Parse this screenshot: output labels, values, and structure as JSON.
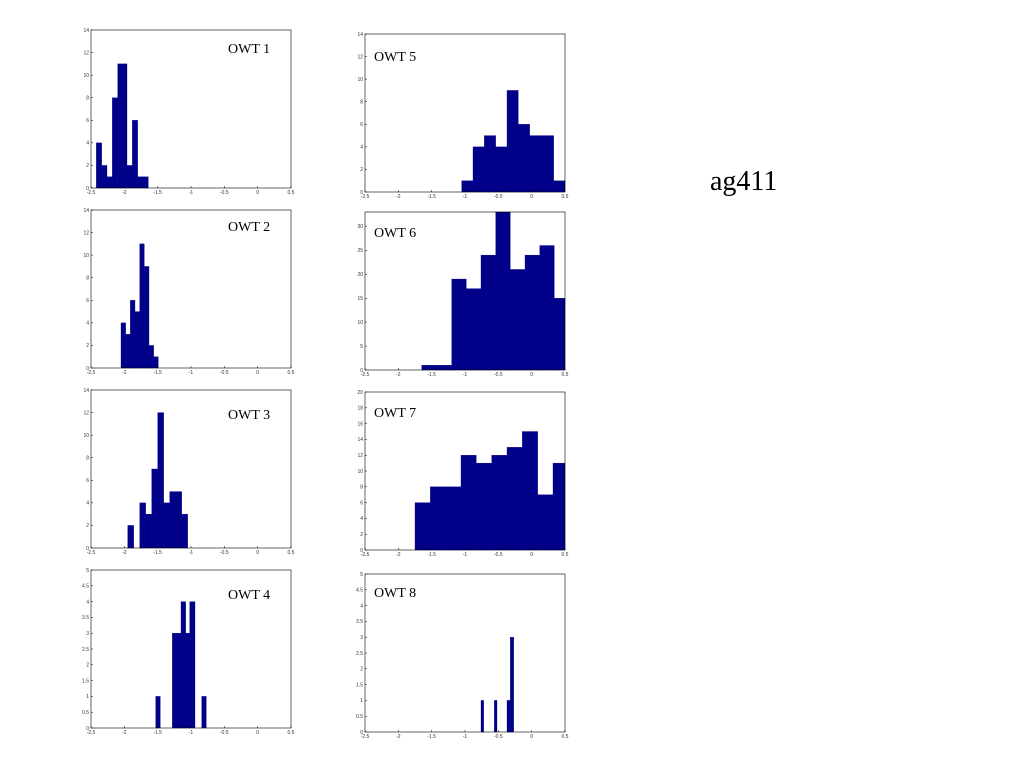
{
  "page": {
    "title": "ag411"
  },
  "colors": {
    "bar": "#000088",
    "axis": "#000000"
  },
  "chart_data": [
    {
      "type": "bar",
      "title": "OWT 1",
      "x_ticks": [
        "-2.5",
        "-2",
        "-1.5",
        "-1",
        "-0.5",
        "0",
        "0.5"
      ],
      "y_ticks": [
        "0",
        "2",
        "4",
        "6",
        "8",
        "10",
        "12",
        "14"
      ],
      "xlim": [
        -2.5,
        0.5
      ],
      "ylim": [
        0,
        14
      ],
      "bins": [
        {
          "x0": -2.42,
          "x1": -2.34,
          "v": 4
        },
        {
          "x0": -2.34,
          "x1": -2.26,
          "v": 2
        },
        {
          "x0": -2.26,
          "x1": -2.18,
          "v": 1
        },
        {
          "x0": -2.18,
          "x1": -2.1,
          "v": 8
        },
        {
          "x0": -2.1,
          "x1": -1.96,
          "v": 11
        },
        {
          "x0": -1.96,
          "x1": -1.88,
          "v": 2
        },
        {
          "x0": -1.88,
          "x1": -1.8,
          "v": 6
        },
        {
          "x0": -1.8,
          "x1": -1.64,
          "v": 1
        }
      ]
    },
    {
      "type": "bar",
      "title": "OWT 2",
      "x_ticks": [
        "-2.5",
        "-2",
        "-1.5",
        "-1",
        "-0.5",
        "0",
        "0.5"
      ],
      "y_ticks": [
        "0",
        "2",
        "4",
        "6",
        "8",
        "10",
        "12",
        "14"
      ],
      "xlim": [
        -2.5,
        0.5
      ],
      "ylim": [
        0,
        14
      ],
      "bins": [
        {
          "x0": -2.05,
          "x1": -1.98,
          "v": 4
        },
        {
          "x0": -1.98,
          "x1": -1.91,
          "v": 3
        },
        {
          "x0": -1.91,
          "x1": -1.84,
          "v": 6
        },
        {
          "x0": -1.84,
          "x1": -1.77,
          "v": 5
        },
        {
          "x0": -1.77,
          "x1": -1.7,
          "v": 11
        },
        {
          "x0": -1.7,
          "x1": -1.63,
          "v": 9
        },
        {
          "x0": -1.63,
          "x1": -1.56,
          "v": 2
        },
        {
          "x0": -1.56,
          "x1": -1.49,
          "v": 1
        }
      ]
    },
    {
      "type": "bar",
      "title": "OWT 3",
      "x_ticks": [
        "-2.5",
        "-2",
        "-1.5",
        "-1",
        "-0.5",
        "0",
        "0.5"
      ],
      "y_ticks": [
        "0",
        "2",
        "4",
        "6",
        "8",
        "10",
        "12",
        "14"
      ],
      "xlim": [
        -2.5,
        0.5
      ],
      "ylim": [
        0,
        14
      ],
      "bins": [
        {
          "x0": -1.95,
          "x1": -1.86,
          "v": 2
        },
        {
          "x0": -1.77,
          "x1": -1.68,
          "v": 4
        },
        {
          "x0": -1.68,
          "x1": -1.59,
          "v": 3
        },
        {
          "x0": -1.59,
          "x1": -1.5,
          "v": 7
        },
        {
          "x0": -1.5,
          "x1": -1.41,
          "v": 12
        },
        {
          "x0": -1.41,
          "x1": -1.32,
          "v": 4
        },
        {
          "x0": -1.32,
          "x1": -1.14,
          "v": 5
        },
        {
          "x0": -1.14,
          "x1": -1.05,
          "v": 3
        }
      ]
    },
    {
      "type": "bar",
      "title": "OWT 4",
      "x_ticks": [
        "-2.5",
        "-2",
        "-1.5",
        "-1",
        "-0.5",
        "0",
        "0.5"
      ],
      "y_ticks": [
        "0",
        "0.5",
        "1",
        "1.5",
        "2",
        "2.5",
        "3",
        "3.5",
        "4",
        "4.5",
        "5"
      ],
      "xlim": [
        -2.5,
        0.5
      ],
      "ylim": [
        0,
        5
      ],
      "bins": [
        {
          "x0": -1.53,
          "x1": -1.46,
          "v": 1
        },
        {
          "x0": -1.28,
          "x1": -1.15,
          "v": 3
        },
        {
          "x0": -1.15,
          "x1": -1.08,
          "v": 4
        },
        {
          "x0": -1.08,
          "x1": -1.02,
          "v": 3
        },
        {
          "x0": -1.02,
          "x1": -0.94,
          "v": 4
        },
        {
          "x0": -0.84,
          "x1": -0.77,
          "v": 1
        }
      ]
    },
    {
      "type": "bar",
      "title": "OWT 5",
      "x_ticks": [
        "-2.5",
        "-2",
        "-1.5",
        "-1",
        "-0.5",
        "0",
        "0.5"
      ],
      "y_ticks": [
        "0",
        "2",
        "4",
        "6",
        "8",
        "10",
        "12",
        "14"
      ],
      "xlim": [
        -2.5,
        0.5
      ],
      "ylim": [
        0,
        14
      ],
      "bins": [
        {
          "x0": -1.05,
          "x1": -0.88,
          "v": 1
        },
        {
          "x0": -0.88,
          "x1": -0.71,
          "v": 4
        },
        {
          "x0": -0.71,
          "x1": -0.54,
          "v": 5
        },
        {
          "x0": -0.54,
          "x1": -0.37,
          "v": 4
        },
        {
          "x0": -0.37,
          "x1": -0.2,
          "v": 9
        },
        {
          "x0": -0.2,
          "x1": -0.03,
          "v": 6
        },
        {
          "x0": -0.03,
          "x1": 0.33,
          "v": 5
        },
        {
          "x0": 0.33,
          "x1": 0.5,
          "v": 1
        }
      ]
    },
    {
      "type": "bar",
      "title": "OWT 6",
      "x_ticks": [
        "-2.5",
        "-2",
        "-1.5",
        "-1",
        "-0.5",
        "0",
        "0.5"
      ],
      "y_ticks": [
        "0",
        "5",
        "10",
        "15",
        "20",
        "25",
        "30"
      ],
      "xlim": [
        -2.5,
        0.5
      ],
      "ylim": [
        0,
        33
      ],
      "bins": [
        {
          "x0": -1.65,
          "x1": -1.2,
          "v": 1
        },
        {
          "x0": -1.2,
          "x1": -0.98,
          "v": 19
        },
        {
          "x0": -0.98,
          "x1": -0.76,
          "v": 17
        },
        {
          "x0": -0.76,
          "x1": -0.54,
          "v": 24
        },
        {
          "x0": -0.54,
          "x1": -0.32,
          "v": 33
        },
        {
          "x0": -0.32,
          "x1": -0.1,
          "v": 21
        },
        {
          "x0": -0.1,
          "x1": 0.12,
          "v": 24
        },
        {
          "x0": 0.12,
          "x1": 0.34,
          "v": 26
        },
        {
          "x0": 0.34,
          "x1": 0.5,
          "v": 15
        }
      ]
    },
    {
      "type": "bar",
      "title": "OWT 7",
      "x_ticks": [
        "-2.5",
        "-2",
        "-1.5",
        "-1",
        "-0.5",
        "0",
        "0.5"
      ],
      "y_ticks": [
        "0",
        "2",
        "4",
        "6",
        "8",
        "10",
        "12",
        "14",
        "16",
        "18",
        "20"
      ],
      "xlim": [
        -2.5,
        0.5
      ],
      "ylim": [
        0,
        20
      ],
      "bins": [
        {
          "x0": -1.75,
          "x1": -1.52,
          "v": 6
        },
        {
          "x0": -1.52,
          "x1": -1.29,
          "v": 8
        },
        {
          "x0": -1.29,
          "x1": -1.06,
          "v": 8
        },
        {
          "x0": -1.06,
          "x1": -0.83,
          "v": 12
        },
        {
          "x0": -0.83,
          "x1": -0.6,
          "v": 11
        },
        {
          "x0": -0.6,
          "x1": -0.37,
          "v": 12
        },
        {
          "x0": -0.37,
          "x1": -0.14,
          "v": 13
        },
        {
          "x0": -0.14,
          "x1": 0.09,
          "v": 15
        },
        {
          "x0": 0.09,
          "x1": 0.32,
          "v": 7
        },
        {
          "x0": 0.32,
          "x1": 0.5,
          "v": 11
        }
      ]
    },
    {
      "type": "bar",
      "title": "OWT 8",
      "x_ticks": [
        "-2.5",
        "-2",
        "-1.5",
        "-1",
        "-0.5",
        "0",
        "0.5"
      ],
      "y_ticks": [
        "0",
        "0.5",
        "1",
        "1.5",
        "2",
        "2.5",
        "3",
        "3.5",
        "4",
        "4.5",
        "5"
      ],
      "xlim": [
        -2.5,
        0.5
      ],
      "ylim": [
        0,
        5
      ],
      "bins": [
        {
          "x0": -0.76,
          "x1": -0.72,
          "v": 1
        },
        {
          "x0": -0.56,
          "x1": -0.52,
          "v": 1
        },
        {
          "x0": -0.37,
          "x1": -0.32,
          "v": 1
        },
        {
          "x0": -0.32,
          "x1": -0.27,
          "v": 3
        }
      ]
    }
  ]
}
